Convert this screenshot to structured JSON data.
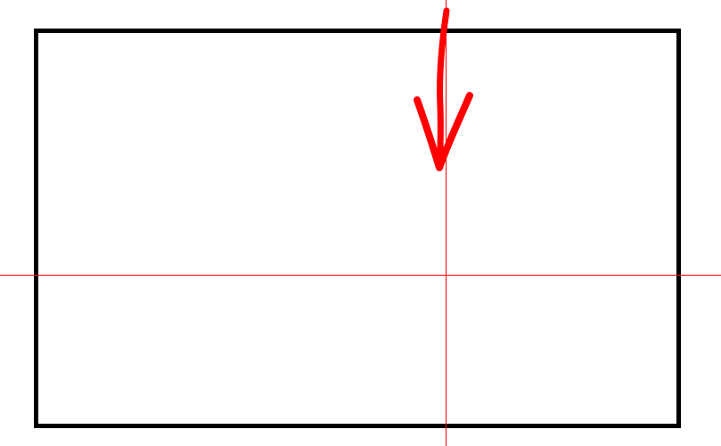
{
  "canvas": {
    "frame_color": "#000000",
    "background_color": "#ffffff"
  },
  "crosshair": {
    "color": "#ff0000"
  },
  "pointer": {
    "icon": "arrow-down-icon",
    "color": "#ff0000"
  }
}
